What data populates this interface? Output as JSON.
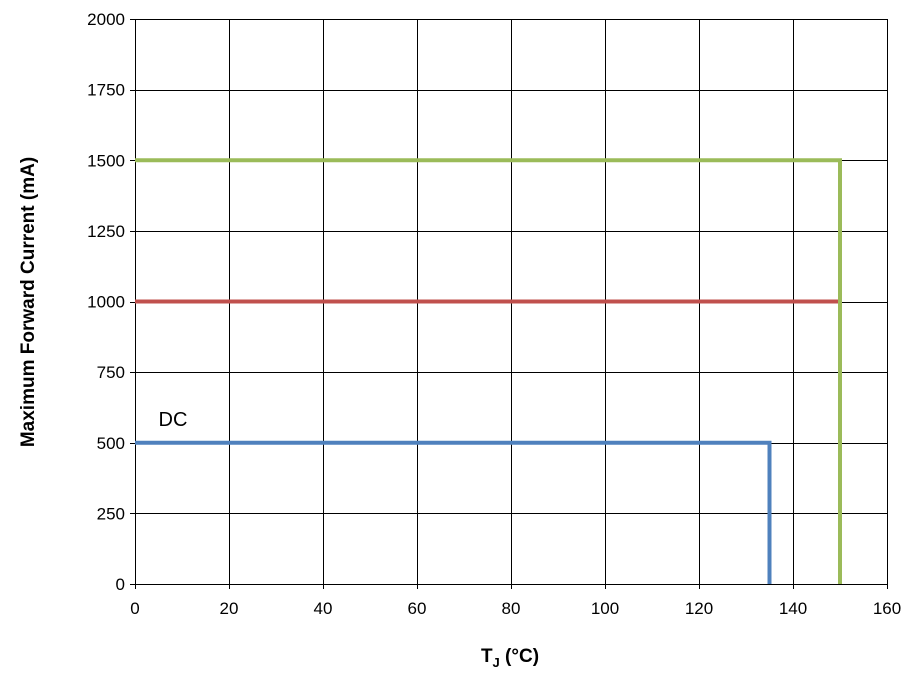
{
  "chart_data": {
    "type": "line",
    "title": "",
    "xlabel_main": "T",
    "xlabel_sub": "J",
    "xlabel_rest": " (°C)",
    "ylabel": "Maximum Forward Current (mA)",
    "xlim": [
      0,
      160
    ],
    "ylim": [
      0,
      2000
    ],
    "xticks": [
      0,
      20,
      40,
      60,
      80,
      100,
      120,
      140,
      160
    ],
    "yticks": [
      0,
      250,
      500,
      750,
      1000,
      1250,
      1500,
      1750,
      2000
    ],
    "grid": true,
    "series": [
      {
        "color": "#4f81bd",
        "points": [
          [
            0,
            500
          ],
          [
            135,
            500
          ],
          [
            135,
            0
          ]
        ]
      },
      {
        "color": "#c0504d",
        "points": [
          [
            0,
            1000
          ],
          [
            150,
            1000
          ]
        ]
      },
      {
        "color": "#9bbb59",
        "points": [
          [
            0,
            1500
          ],
          [
            150,
            1500
          ],
          [
            150,
            0
          ]
        ]
      }
    ],
    "annotations": [
      {
        "text": "DC",
        "x": 5,
        "y": 560
      }
    ]
  }
}
